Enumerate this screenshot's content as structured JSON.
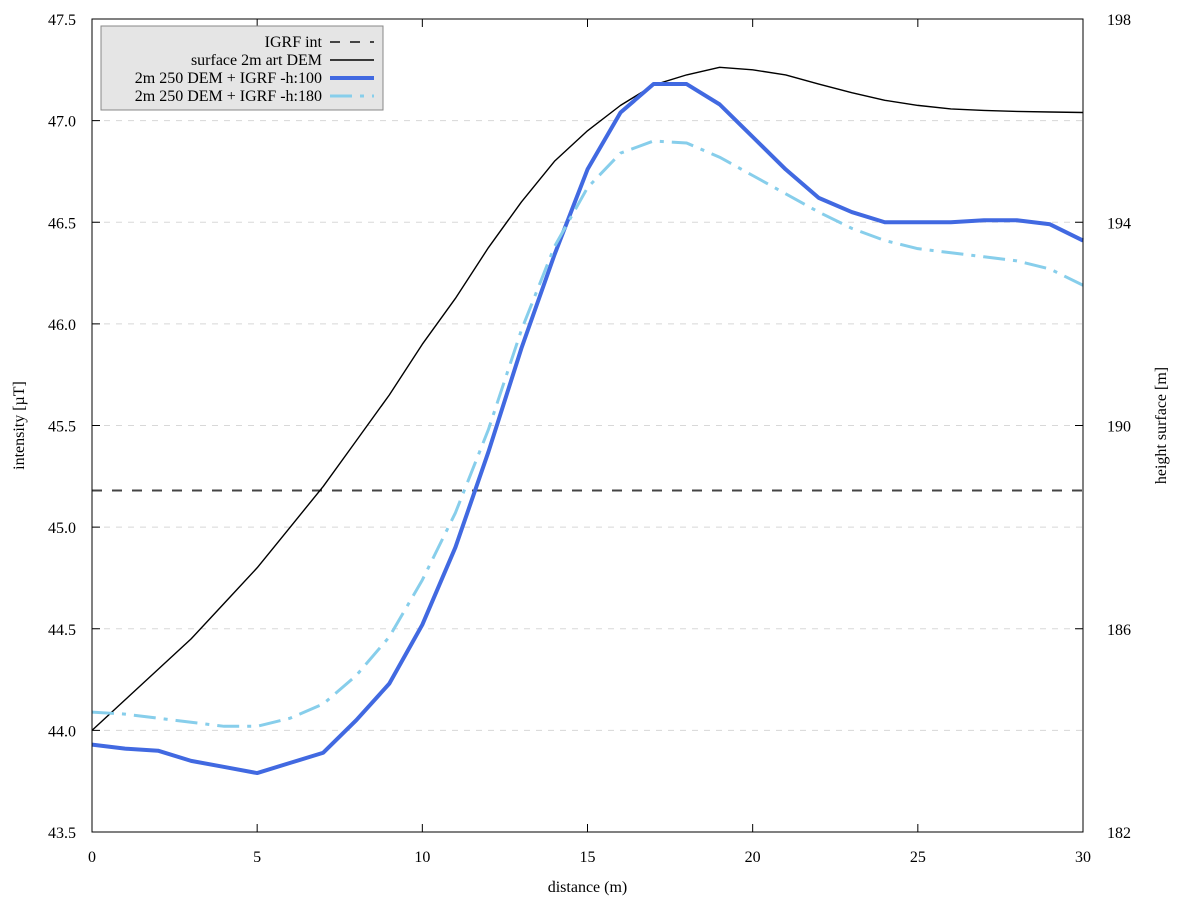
{
  "chart_data": {
    "type": "line",
    "xlabel": "distance (m)",
    "ylabel": "intensity [µT]",
    "y2label": "height surface [m]",
    "xlim": [
      0,
      30
    ],
    "ylim": [
      43.5,
      47.5
    ],
    "y2lim": [
      182,
      198
    ],
    "x_ticks": [
      0,
      5,
      10,
      15,
      20,
      25,
      30
    ],
    "x_tick_labels": [
      "0",
      "5",
      "10",
      "15",
      "20",
      "25",
      "30"
    ],
    "y_ticks": [
      43.5,
      44.0,
      44.5,
      45.0,
      45.5,
      46.0,
      46.5,
      47.0,
      47.5
    ],
    "y_tick_labels": [
      "43.5",
      "44.0",
      "44.5",
      "45.0",
      "45.5",
      "46.0",
      "46.5",
      "47.0",
      "47.5"
    ],
    "y2_ticks": [
      182,
      186,
      190,
      194,
      198
    ],
    "y2_tick_labels": [
      "182",
      "186",
      "190",
      "194",
      "198"
    ],
    "grid": "horizontal dashed",
    "legend_position": "top-left",
    "series": [
      {
        "name": "IGRF int",
        "axis": "y",
        "style": "dashed",
        "color": "#444444",
        "x": [
          0,
          30
        ],
        "y": [
          45.18,
          45.18
        ]
      },
      {
        "name": "surface 2m art DEM",
        "axis": "y2",
        "style": "solid-thin",
        "color": "#000000",
        "x": [
          0,
          1,
          2,
          3,
          4,
          5,
          6,
          7,
          8,
          9,
          10,
          11,
          12,
          13,
          14,
          15,
          16,
          17,
          18,
          19,
          20,
          21,
          22,
          23,
          24,
          25,
          26,
          27,
          28,
          29,
          30
        ],
        "y": [
          184.0,
          184.6,
          185.2,
          185.8,
          186.5,
          187.2,
          188.0,
          188.8,
          189.7,
          190.6,
          191.6,
          192.5,
          193.5,
          194.4,
          195.2,
          195.8,
          196.3,
          196.7,
          196.9,
          197.05,
          197.0,
          196.9,
          196.72,
          196.55,
          196.4,
          196.3,
          196.23,
          196.2,
          196.18,
          196.17,
          196.16
        ]
      },
      {
        "name": "2m 250 DEM + IGRF -h:100",
        "axis": "y",
        "style": "solid-thick",
        "color": "#4169e1",
        "x": [
          0,
          1,
          2,
          3,
          4,
          5,
          6,
          7,
          8,
          9,
          10,
          11,
          12,
          13,
          14,
          15,
          16,
          17,
          18,
          19,
          20,
          21,
          22,
          23,
          24,
          25,
          26,
          27,
          28,
          29,
          30
        ],
        "y": [
          43.93,
          43.91,
          43.9,
          43.85,
          43.82,
          43.79,
          43.84,
          43.89,
          44.05,
          44.23,
          44.52,
          44.9,
          45.37,
          45.88,
          46.34,
          46.76,
          47.04,
          47.18,
          47.18,
          47.08,
          46.92,
          46.76,
          46.62,
          46.55,
          46.5,
          46.5,
          46.5,
          46.51,
          46.51,
          46.49,
          46.41
        ]
      },
      {
        "name": "2m 250 DEM + IGRF -h:180",
        "axis": "y",
        "style": "dash-dot",
        "color": "#87ceeb",
        "x": [
          0,
          1,
          2,
          3,
          4,
          5,
          6,
          7,
          8,
          9,
          10,
          11,
          12,
          13,
          14,
          15,
          16,
          17,
          18,
          19,
          20,
          21,
          22,
          23,
          24,
          25,
          26,
          27,
          28,
          29,
          30
        ],
        "y": [
          44.09,
          44.08,
          44.06,
          44.04,
          44.02,
          44.02,
          44.06,
          44.13,
          44.27,
          44.46,
          44.74,
          45.07,
          45.48,
          45.97,
          46.38,
          46.67,
          46.84,
          46.9,
          46.89,
          46.82,
          46.73,
          46.64,
          46.55,
          46.47,
          46.41,
          46.37,
          46.35,
          46.33,
          46.31,
          46.27,
          46.19
        ]
      }
    ]
  }
}
